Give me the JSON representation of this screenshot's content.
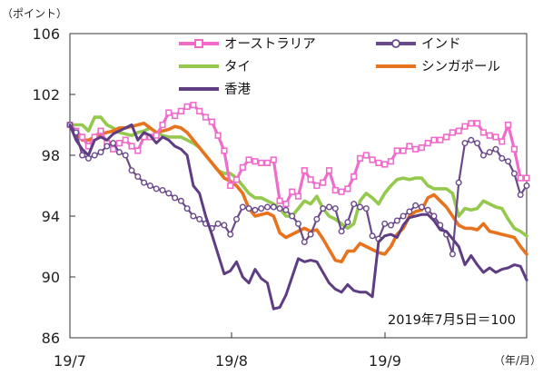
{
  "chart_data": {
    "type": "line",
    "y_unit_label": "（ポイント）",
    "x_unit_label": "（年/月）",
    "annotation": "2019年7月5日＝100",
    "ylim": [
      86,
      106
    ],
    "y_ticks": [
      86,
      90,
      94,
      98,
      102,
      106
    ],
    "x_ticks": [
      "19/7",
      "19/8",
      "19/9"
    ],
    "legend_position": "top",
    "grid": false,
    "series": [
      {
        "name": "オーストラリア",
        "color": "#f06ccb",
        "marker": "square",
        "values": [
          100.0,
          99.6,
          99.2,
          98.6,
          99.2,
          99.6,
          98.8,
          98.4,
          98.8,
          99.0,
          98.6,
          98.3,
          99.2,
          99.2,
          99.3,
          100.0,
          100.8,
          100.6,
          100.9,
          101.2,
          101.3,
          100.9,
          100.5,
          100.2,
          99.3,
          98.3,
          96.0,
          96.4,
          97.2,
          97.7,
          97.6,
          97.5,
          97.5,
          97.7,
          95.0,
          94.8,
          95.6,
          95.3,
          97.0,
          96.4,
          96.0,
          96.2,
          97.0,
          95.7,
          95.6,
          95.8,
          96.6,
          97.8,
          98.0,
          97.7,
          97.5,
          97.4,
          97.6,
          98.3,
          98.3,
          98.6,
          98.4,
          98.5,
          98.8,
          99.0,
          99.0,
          99.2,
          99.5,
          99.6,
          99.9,
          100.1,
          100.1,
          99.5,
          99.3,
          99.2,
          98.9,
          100.0,
          98.4,
          96.5,
          96.5
        ]
      },
      {
        "name": "インド",
        "color": "#6b4a8a",
        "marker": "circle",
        "values": [
          100.0,
          99.5,
          98.0,
          97.8,
          98.0,
          98.2,
          98.6,
          98.8,
          98.2,
          98.0,
          97.0,
          96.6,
          96.2,
          96.0,
          95.8,
          95.7,
          95.5,
          95.2,
          95.0,
          94.5,
          94.0,
          93.8,
          93.5,
          93.2,
          93.5,
          93.4,
          92.8,
          93.8,
          94.6,
          94.5,
          94.4,
          94.5,
          94.6,
          94.6,
          94.5,
          94.4,
          94.0,
          93.5,
          92.3,
          92.8,
          93.8,
          94.5,
          94.6,
          94.5,
          93.0,
          93.6,
          94.8,
          94.6,
          94.5,
          92.7,
          92.5,
          93.5,
          93.4,
          93.7,
          94.0,
          94.3,
          94.7,
          94.6,
          94.4,
          94.0,
          93.4,
          92.8,
          91.5,
          96.2,
          98.8,
          99.0,
          98.8,
          98.0,
          98.2,
          98.4,
          97.8,
          97.6,
          96.8,
          95.4,
          96.0
        ]
      },
      {
        "name": "タイ",
        "color": "#95c94e",
        "marker": "none",
        "values": [
          100.0,
          100.0,
          100.0,
          99.6,
          100.5,
          100.5,
          100.0,
          99.8,
          99.5,
          99.4,
          99.3,
          99.5,
          99.6,
          99.8,
          99.5,
          99.3,
          99.2,
          99.2,
          99.2,
          99.0,
          98.8,
          98.5,
          98.0,
          97.5,
          97.0,
          96.8,
          96.8,
          96.5,
          96.0,
          95.5,
          95.2,
          95.2,
          95.0,
          94.8,
          94.5,
          94.0,
          94.0,
          94.5,
          95.0,
          94.8,
          95.3,
          94.5,
          94.0,
          93.8,
          93.5,
          93.2,
          93.5,
          95.0,
          95.5,
          95.2,
          94.8,
          95.5,
          96.0,
          96.4,
          96.5,
          96.4,
          96.5,
          96.5,
          96.0,
          95.8,
          95.8,
          95.8,
          95.5,
          94.0,
          94.5,
          94.4,
          94.5,
          95.0,
          94.8,
          94.6,
          94.5,
          93.8,
          93.2,
          93.0,
          92.7
        ]
      },
      {
        "name": "シンガポール",
        "color": "#e8731e",
        "marker": "none",
        "values": [
          100.0,
          99.6,
          99.0,
          99.0,
          99.2,
          99.4,
          99.5,
          99.6,
          99.8,
          99.8,
          99.9,
          100.0,
          100.1,
          99.8,
          99.5,
          99.6,
          99.7,
          99.9,
          99.8,
          99.5,
          99.0,
          98.5,
          98.0,
          97.5,
          97.0,
          96.5,
          96.3,
          96.0,
          95.5,
          94.5,
          94.0,
          94.1,
          94.2,
          94.0,
          92.9,
          92.6,
          92.8,
          93.0,
          93.2,
          93.0,
          93.1,
          92.5,
          91.8,
          91.1,
          91.0,
          91.7,
          91.7,
          92.2,
          92.0,
          91.8,
          91.6,
          91.5,
          92.0,
          92.8,
          93.2,
          94.0,
          94.3,
          94.4,
          95.2,
          95.4,
          95.0,
          94.6,
          94.0,
          93.4,
          93.2,
          93.2,
          93.1,
          93.5,
          93.0,
          92.9,
          92.8,
          92.7,
          92.6,
          92.0,
          91.5
        ]
      },
      {
        "name": "香港",
        "color": "#5e3d82",
        "marker": "none",
        "values": [
          100.0,
          99.0,
          98.4,
          98.0,
          99.0,
          99.2,
          99.0,
          99.4,
          99.6,
          99.8,
          100.0,
          99.0,
          99.5,
          99.3,
          98.8,
          99.2,
          99.0,
          98.6,
          98.4,
          98.0,
          96.0,
          95.5,
          94.0,
          92.8,
          91.5,
          90.2,
          90.4,
          91.0,
          90.0,
          89.6,
          90.5,
          89.9,
          89.6,
          87.9,
          88.0,
          88.8,
          90.0,
          91.2,
          91.0,
          91.1,
          91.0,
          90.3,
          89.6,
          89.2,
          89.0,
          89.5,
          89.1,
          89.0,
          89.0,
          88.7,
          92.3,
          92.7,
          92.8,
          92.6,
          93.4,
          93.9,
          94.0,
          94.1,
          94.1,
          93.7,
          93.1,
          93.0,
          92.5,
          92.0,
          90.8,
          91.4,
          90.8,
          90.3,
          90.6,
          90.3,
          90.5,
          90.6,
          90.8,
          90.7,
          89.8
        ]
      }
    ]
  }
}
